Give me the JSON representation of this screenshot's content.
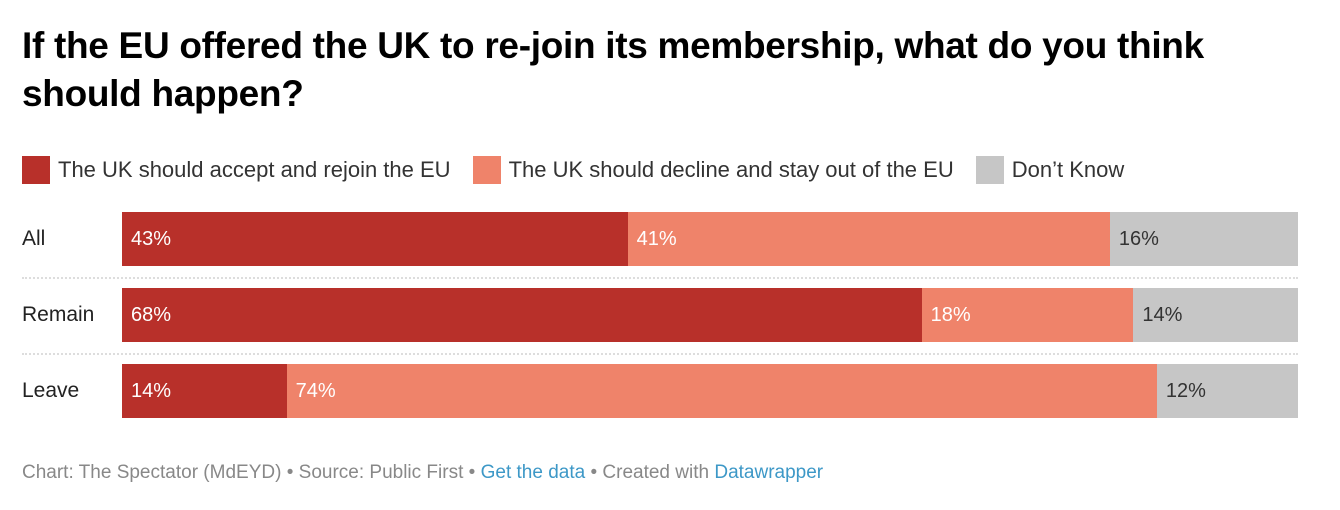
{
  "chart_data": {
    "type": "bar",
    "stacked": true,
    "orientation": "horizontal",
    "title": "If the EU offered the UK to re-join its membership, what do you think should happen?",
    "categories": [
      "All",
      "Remain",
      "Leave"
    ],
    "series": [
      {
        "name": "The UK should accept and rejoin the EU",
        "color": "#b8302a",
        "label_color": "#ffffff",
        "values": [
          43,
          68,
          14
        ]
      },
      {
        "name": "The UK should decline and stay out of the EU",
        "color": "#ef836a",
        "label_color": "#ffffff",
        "values": [
          41,
          18,
          74
        ]
      },
      {
        "name": "Don’t Know",
        "color": "#c6c6c6",
        "label_color": "#333333",
        "values": [
          16,
          14,
          12
        ]
      }
    ],
    "value_suffix": "%",
    "xlim": [
      0,
      100
    ],
    "legend_position": "top-left"
  },
  "footer": {
    "chart": "Chart: The Spectator (MdEYD)",
    "sep": " • ",
    "source": "Source: Public First",
    "get_data": "Get the data",
    "created": "Created with",
    "datawrapper": "Datawrapper"
  }
}
